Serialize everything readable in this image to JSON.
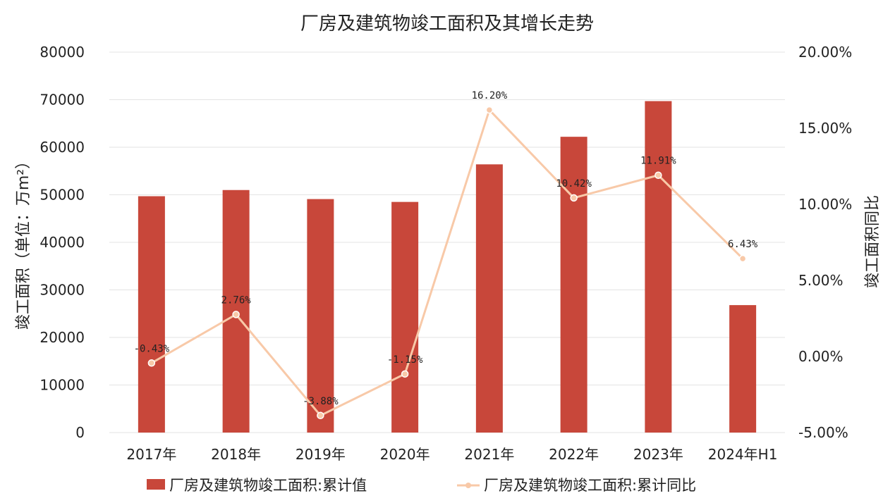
{
  "chart_data": {
    "type": "bar+line",
    "title": "厂房及建筑物竣工面积及其增长走势",
    "categories": [
      "2017年",
      "2018年",
      "2019年",
      "2020年",
      "2021年",
      "2022年",
      "2023年",
      "2024年H1"
    ],
    "series": [
      {
        "name": "厂房及建筑物竣工面积:累计值",
        "type": "bar",
        "axis": "left",
        "color": "#c8473a",
        "values": [
          49700,
          51000,
          49100,
          48500,
          56400,
          62200,
          69700,
          26800
        ]
      },
      {
        "name": "厂房及建筑物竣工面积:累计同比",
        "type": "line",
        "axis": "right",
        "color": "#f8c9a8",
        "values": [
          -0.43,
          2.76,
          -3.88,
          -1.15,
          16.2,
          10.42,
          11.91,
          6.43
        ],
        "labels": [
          "-0.43%",
          "2.76%",
          "-3.88%",
          "-1.15%",
          "16.20%",
          "10.42%",
          "11.91%",
          "6.43%"
        ]
      }
    ],
    "ylabel": "竣工面积（单位：万m²）",
    "ylabel_right": "竣工面积同比",
    "ylim": [
      0,
      80000
    ],
    "ylim_right": [
      -5,
      20
    ],
    "yticks": [
      "0",
      "10000",
      "20000",
      "30000",
      "40000",
      "50000",
      "60000",
      "70000",
      "80000"
    ],
    "yticks_right": [
      "-5.00%",
      "0.00%",
      "5.00%",
      "10.00%",
      "15.00%",
      "20.00%"
    ],
    "grid": true,
    "legend_position": "bottom"
  }
}
